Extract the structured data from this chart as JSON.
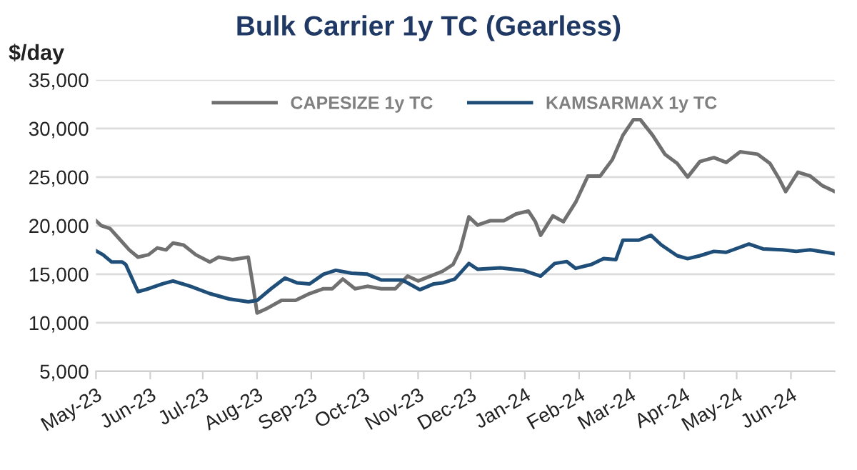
{
  "chart_data": {
    "type": "line",
    "title": "Bulk Carrier 1y TC (Gearless)",
    "ylabel": "$/day",
    "xlim": [
      "2023-05-01",
      "2024-06-26"
    ],
    "ylim": [
      5000,
      35000
    ],
    "yticks": [
      {
        "value": 5000,
        "label": "5,000"
      },
      {
        "value": 10000,
        "label": "10,000"
      },
      {
        "value": 15000,
        "label": "15,000"
      },
      {
        "value": 20000,
        "label": "20,000"
      },
      {
        "value": 25000,
        "label": "25,000"
      },
      {
        "value": 30000,
        "label": "30,000"
      },
      {
        "value": 35000,
        "label": "35,000"
      }
    ],
    "xticks": [
      {
        "value": "2023-05-01",
        "label": "May-23"
      },
      {
        "value": "2023-06-01",
        "label": "Jun-23"
      },
      {
        "value": "2023-07-01",
        "label": "Jul-23"
      },
      {
        "value": "2023-08-01",
        "label": "Aug-23"
      },
      {
        "value": "2023-09-01",
        "label": "Sep-23"
      },
      {
        "value": "2023-10-01",
        "label": "Oct-23"
      },
      {
        "value": "2023-11-01",
        "label": "Nov-23"
      },
      {
        "value": "2023-12-01",
        "label": "Dec-23"
      },
      {
        "value": "2024-01-01",
        "label": "Jan-24"
      },
      {
        "value": "2024-02-01",
        "label": "Feb-24"
      },
      {
        "value": "2024-03-01",
        "label": "Mar-24"
      },
      {
        "value": "2024-04-01",
        "label": "Apr-24"
      },
      {
        "value": "2024-05-01",
        "label": "May-24"
      },
      {
        "value": "2024-06-01",
        "label": "Jun-24"
      }
    ],
    "grid": "y",
    "legend": "top",
    "marker": "none",
    "line_style": "solid",
    "series": [
      {
        "name": "CAPESIZE 1y TC",
        "color": "#707070",
        "x": [
          "2023-05-01",
          "2023-05-04",
          "2023-05-09",
          "2023-05-14",
          "2023-05-20",
          "2023-05-25",
          "2023-05-31",
          "2023-06-05",
          "2023-06-10",
          "2023-06-14",
          "2023-06-20",
          "2023-06-27",
          "2023-07-05",
          "2023-07-10",
          "2023-07-18",
          "2023-07-27",
          "2023-07-30",
          "2023-08-01",
          "2023-08-07",
          "2023-08-15",
          "2023-08-23",
          "2023-08-31",
          "2023-09-08",
          "2023-09-13",
          "2023-09-19",
          "2023-09-26",
          "2023-10-03",
          "2023-10-11",
          "2023-10-19",
          "2023-10-26",
          "2023-11-01",
          "2023-11-08",
          "2023-11-15",
          "2023-11-21",
          "2023-11-25",
          "2023-11-30",
          "2023-12-05",
          "2023-12-12",
          "2023-12-20",
          "2023-12-27",
          "2024-01-03",
          "2024-01-07",
          "2024-01-10",
          "2024-01-17",
          "2024-01-23",
          "2024-01-30",
          "2024-02-06",
          "2024-02-13",
          "2024-02-20",
          "2024-02-26",
          "2024-03-03",
          "2024-03-07",
          "2024-03-14",
          "2024-03-21",
          "2024-03-28",
          "2024-04-03",
          "2024-04-10",
          "2024-04-18",
          "2024-04-25",
          "2024-05-03",
          "2024-05-13",
          "2024-05-20",
          "2024-05-25",
          "2024-05-29",
          "2024-06-05",
          "2024-06-12",
          "2024-06-19",
          "2024-06-26"
        ],
        "values": [
          20500,
          20000,
          19700,
          18700,
          17500,
          16750,
          17000,
          17700,
          17500,
          18200,
          18000,
          17000,
          16250,
          16750,
          16500,
          16750,
          13500,
          11000,
          11500,
          12300,
          12300,
          13000,
          13500,
          13500,
          14500,
          13500,
          13750,
          13500,
          13500,
          14800,
          14300,
          14800,
          15300,
          16000,
          17500,
          20900,
          20050,
          20500,
          20500,
          21200,
          21500,
          20400,
          19000,
          21000,
          20400,
          22400,
          25100,
          25100,
          26800,
          29300,
          30900,
          30900,
          29300,
          27350,
          26400,
          25000,
          26600,
          27000,
          26500,
          27600,
          27350,
          26400,
          24900,
          23500,
          25500,
          25100,
          24100,
          23500
        ]
      },
      {
        "name": "KAMSARMAX 1y TC",
        "color": "#1f4e79",
        "x": [
          "2023-05-01",
          "2023-05-05",
          "2023-05-10",
          "2023-05-16",
          "2023-05-18",
          "2023-05-25",
          "2023-05-31",
          "2023-06-08",
          "2023-06-14",
          "2023-06-24",
          "2023-07-05",
          "2023-07-16",
          "2023-07-27",
          "2023-08-01",
          "2023-08-09",
          "2023-08-17",
          "2023-08-24",
          "2023-08-31",
          "2023-09-08",
          "2023-09-15",
          "2023-09-24",
          "2023-10-03",
          "2023-10-11",
          "2023-10-23",
          "2023-11-02",
          "2023-11-10",
          "2023-11-15",
          "2023-11-22",
          "2023-11-30",
          "2023-12-05",
          "2023-12-18",
          "2023-12-31",
          "2024-01-10",
          "2024-01-18",
          "2024-01-25",
          "2024-01-30",
          "2024-02-08",
          "2024-02-15",
          "2024-02-22",
          "2024-02-26",
          "2024-03-06",
          "2024-03-13",
          "2024-03-19",
          "2024-03-28",
          "2024-04-03",
          "2024-04-10",
          "2024-04-18",
          "2024-04-25",
          "2024-05-08",
          "2024-05-16",
          "2024-05-27",
          "2024-06-04",
          "2024-06-12",
          "2024-06-26"
        ],
        "values": [
          17400,
          17000,
          16250,
          16250,
          16000,
          13200,
          13500,
          14000,
          14300,
          13750,
          13000,
          12450,
          12150,
          12300,
          13500,
          14600,
          14100,
          14000,
          15000,
          15400,
          15100,
          15000,
          14400,
          14400,
          13400,
          14000,
          14100,
          14500,
          16100,
          15500,
          15650,
          15400,
          14800,
          16100,
          16300,
          15600,
          16000,
          16600,
          16500,
          18500,
          18500,
          19000,
          18000,
          16900,
          16600,
          16900,
          17350,
          17250,
          18100,
          17600,
          17500,
          17350,
          17500,
          17100
        ]
      }
    ]
  }
}
